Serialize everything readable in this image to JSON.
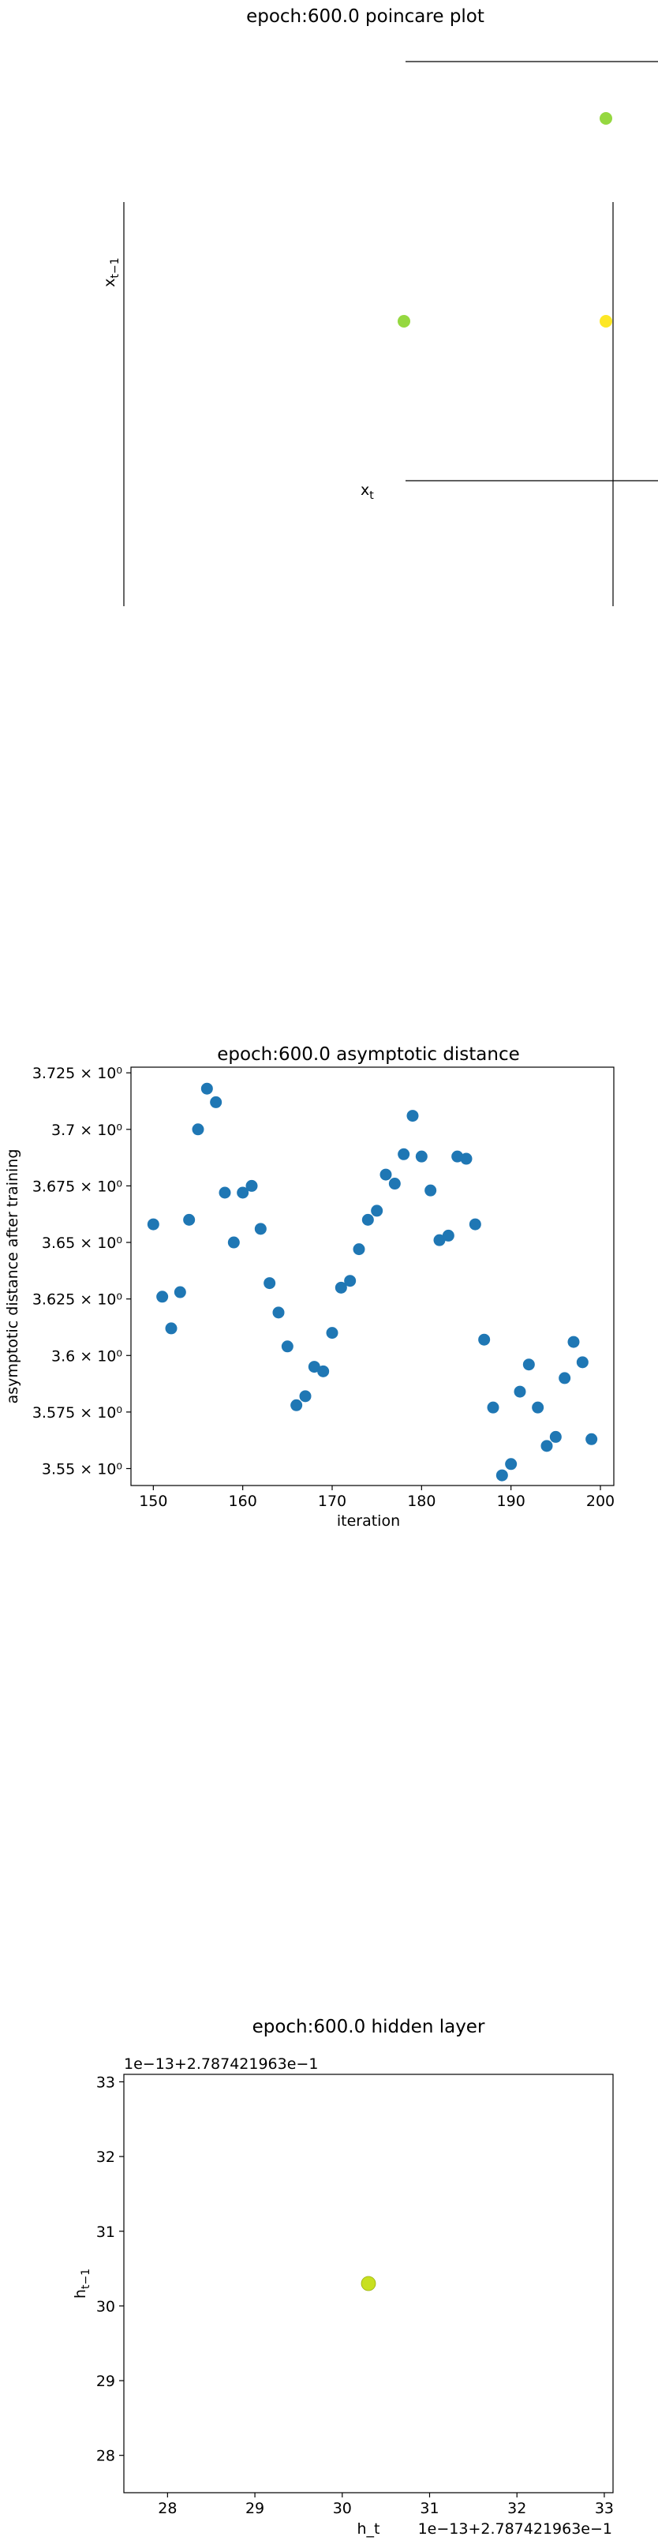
{
  "chart_data": [
    {
      "type": "scatter",
      "title": "epoch:600.0 poincare plot",
      "xlabel": "x_t",
      "ylabel": "x_{t-1}",
      "points": [
        {
          "x": 0.0,
          "y": 1.0,
          "color": "#95d840"
        },
        {
          "x": -1.0,
          "y": 0.0,
          "color": "#95d840"
        },
        {
          "x": 0.0,
          "y": 0.0,
          "color": "#fde725"
        }
      ]
    },
    {
      "type": "scatter",
      "title": "epoch:600.0 asymptotic distance",
      "xlabel": "iteration",
      "ylabel": "asymptotic distance after training",
      "xlim": [
        147.5,
        201.5
      ],
      "ylim": [
        3.5425,
        3.7275
      ],
      "xticks": [
        "150",
        "160",
        "170",
        "180",
        "190",
        "200"
      ],
      "yticks": [
        "3.55 × 10⁰",
        "3.575 × 10⁰",
        "3.6 × 10⁰",
        "3.625 × 10⁰",
        "3.65 × 10⁰",
        "3.675 × 10⁰",
        "3.7 × 10⁰",
        "3.725 × 10⁰"
      ],
      "color": "#1f77b4",
      "x": [
        150,
        151,
        152,
        153,
        154,
        155,
        156,
        157,
        158,
        159,
        160,
        161,
        162,
        163,
        164,
        165,
        166,
        167,
        168,
        169,
        170,
        171,
        172,
        173,
        174,
        175,
        176,
        177,
        178,
        179,
        180,
        181,
        182,
        183,
        184,
        185,
        186,
        187,
        188,
        189,
        190,
        191,
        192,
        193,
        194,
        195,
        196,
        197,
        198,
        199
      ],
      "y": [
        3.658,
        3.626,
        3.612,
        3.628,
        3.66,
        3.7,
        3.718,
        3.712,
        3.672,
        3.65,
        3.672,
        3.675,
        3.656,
        3.632,
        3.619,
        3.604,
        3.578,
        3.582,
        3.595,
        3.593,
        3.61,
        3.63,
        3.633,
        3.647,
        3.66,
        3.664,
        3.68,
        3.676,
        3.689,
        3.706,
        3.688,
        3.673,
        3.651,
        3.653,
        3.688,
        3.687,
        3.658,
        3.607,
        3.577,
        3.547,
        3.552,
        3.584,
        3.596,
        3.577,
        3.56,
        3.564,
        3.59,
        3.606,
        3.597,
        3.563
      ]
    },
    {
      "type": "scatter",
      "title": "epoch:600.0 hidden layer",
      "xlabel": "h_t",
      "ylabel": "h_{t-1}",
      "offset_text_x": "1e−13+2.787421963e−1",
      "offset_text_y": "1e−13+2.787421963e−1",
      "xlim": [
        27.5,
        33.1
      ],
      "ylim": [
        27.5,
        33.1
      ],
      "xticks": [
        "28",
        "29",
        "30",
        "31",
        "32",
        "33"
      ],
      "yticks": [
        "28",
        "29",
        "30",
        "31",
        "32",
        "33"
      ],
      "points": [
        {
          "x": 30.3,
          "y": 30.3,
          "color": "#c8e020"
        }
      ]
    }
  ]
}
